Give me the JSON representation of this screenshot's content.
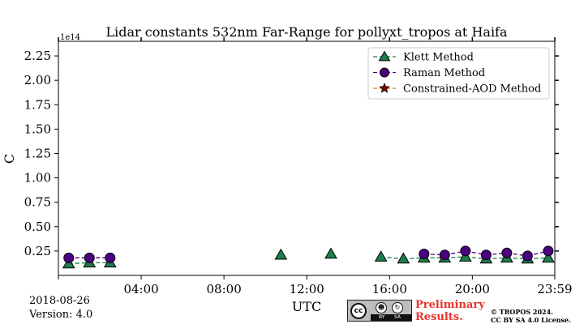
{
  "chart_data": {
    "type": "scatter",
    "title": "Lidar constants 532nm Far-Range for pollyxt_tropos at Haifa",
    "xlabel": "UTC",
    "ylabel": "C",
    "y_offset_label": "1e14",
    "xlim": [
      0,
      1439
    ],
    "ylim": [
      0,
      2.4
    ],
    "x_ticks": [
      {
        "value": 240,
        "label": "04:00"
      },
      {
        "value": 480,
        "label": "08:00"
      },
      {
        "value": 720,
        "label": "12:00"
      },
      {
        "value": 960,
        "label": "16:00"
      },
      {
        "value": 1200,
        "label": "20:00"
      },
      {
        "value": 1439,
        "label": "23:59"
      }
    ],
    "y_ticks": [
      {
        "value": 0.25,
        "label": "0.25"
      },
      {
        "value": 0.5,
        "label": "0.50"
      },
      {
        "value": 0.75,
        "label": "0.75"
      },
      {
        "value": 1.0,
        "label": "1.00"
      },
      {
        "value": 1.25,
        "label": "1.25"
      },
      {
        "value": 1.5,
        "label": "1.50"
      },
      {
        "value": 1.75,
        "label": "1.75"
      },
      {
        "value": 2.0,
        "label": "2.00"
      },
      {
        "value": 2.25,
        "label": "2.25"
      }
    ],
    "legend_position": "top-right",
    "series": [
      {
        "name": "Klett Method",
        "marker": "triangle",
        "color": "#1a7f4b",
        "line_color": "#1a7f4b",
        "points": [
          {
            "x": 30,
            "y": 0.12
          },
          {
            "x": 90,
            "y": 0.13
          },
          {
            "x": 150,
            "y": 0.13
          },
          {
            "x": 645,
            "y": 0.21
          },
          {
            "x": 790,
            "y": 0.22
          },
          {
            "x": 935,
            "y": 0.19
          },
          {
            "x": 1000,
            "y": 0.17
          },
          {
            "x": 1060,
            "y": 0.18
          },
          {
            "x": 1120,
            "y": 0.18
          },
          {
            "x": 1180,
            "y": 0.19
          },
          {
            "x": 1240,
            "y": 0.17
          },
          {
            "x": 1300,
            "y": 0.18
          },
          {
            "x": 1360,
            "y": 0.17
          },
          {
            "x": 1420,
            "y": 0.18
          }
        ]
      },
      {
        "name": "Raman Method",
        "marker": "circle",
        "color": "#4b0082",
        "line_color": "#4b0082",
        "points": [
          {
            "x": 30,
            "y": 0.18
          },
          {
            "x": 90,
            "y": 0.18
          },
          {
            "x": 150,
            "y": 0.18
          },
          {
            "x": 1060,
            "y": 0.22
          },
          {
            "x": 1120,
            "y": 0.21
          },
          {
            "x": 1180,
            "y": 0.25
          },
          {
            "x": 1240,
            "y": 0.21
          },
          {
            "x": 1300,
            "y": 0.23
          },
          {
            "x": 1360,
            "y": 0.2
          },
          {
            "x": 1420,
            "y": 0.25
          }
        ]
      },
      {
        "name": "Constrained-AOD Method",
        "marker": "star",
        "color": "#8b0000",
        "line_color": "#e07b00",
        "points": []
      }
    ]
  },
  "footer": {
    "date": "2018-08-26",
    "version": "Version: 4.0",
    "preliminary_line1": "Preliminary",
    "preliminary_line2": "Results.",
    "copyright_line1": "© TROPOS 2024.",
    "copyright_line2": "CC BY SA 4.0 License.",
    "license_badge": {
      "cc": "cc",
      "by": "BY",
      "sa": "SA"
    },
    "preliminary_color": "#e8332a"
  }
}
